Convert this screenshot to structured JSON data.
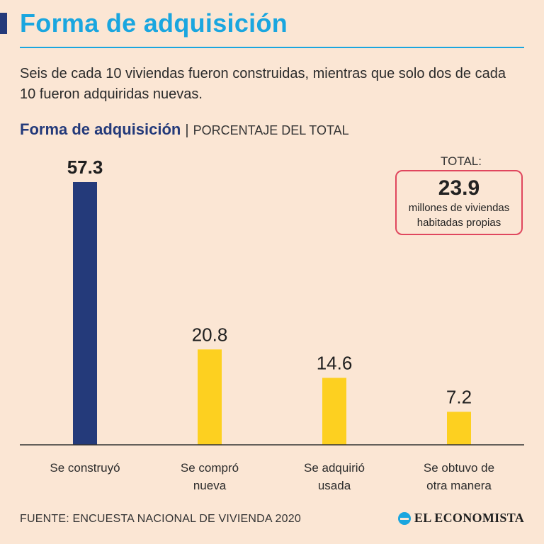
{
  "header": {
    "title": "Forma de adquisición",
    "subtitle": "Seis de cada 10 viviendas fueron construidas, mientras que solo dos de cada 10 fueron adquiridas nuevas."
  },
  "chart_head": {
    "title": "Forma de adquisición",
    "separator": "|",
    "unit": "PORCENTAJE DEL TOTAL"
  },
  "total": {
    "label": "TOTAL:",
    "value": "23.9",
    "desc_line1": "millones de viviendas",
    "desc_line2": "habitadas propias"
  },
  "chart_data": {
    "type": "bar",
    "title": "Forma de adquisición",
    "ylabel": "PORCENTAJE DEL TOTAL",
    "xlabel": "",
    "ylim": [
      0,
      57.3
    ],
    "grid": false,
    "categories": [
      [
        "Se construyó"
      ],
      [
        "Se compró",
        "nueva"
      ],
      [
        "Se adquirió",
        "usada"
      ],
      [
        "Se obtuvo de",
        "otra manera"
      ]
    ],
    "values": [
      57.3,
      20.8,
      14.6,
      7.2
    ],
    "value_labels": [
      "57.3",
      "20.8",
      "14.6",
      "7.2"
    ],
    "colors": [
      "#243a7a",
      "#fdd020",
      "#fdd020",
      "#fdd020"
    ],
    "highlight_index": 0
  },
  "footer": {
    "source": "FUENTE: ENCUESTA NACIONAL DE VIVIENDA 2020",
    "brand": "EL ECONOMISTA"
  },
  "colors": {
    "background": "#fbe6d4",
    "title_blue": "#1aa6df",
    "navy": "#243a7a",
    "yellow": "#fdd020",
    "box_border": "#e0475e"
  }
}
